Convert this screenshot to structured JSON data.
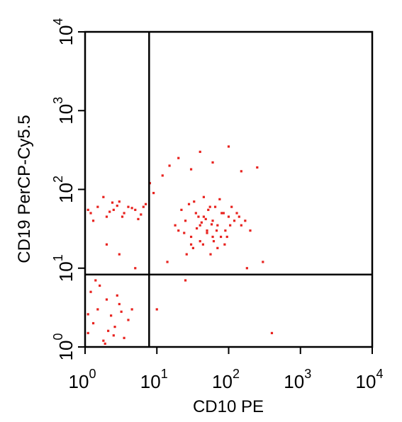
{
  "chart_data": {
    "type": "scatter",
    "x_label": "CD10 PE",
    "y_label": "CD19 PerCP-Cy5.5",
    "log_x": true,
    "log_y": true,
    "color": "#e8231f",
    "xlim": [
      1,
      10000
    ],
    "ylim": [
      1,
      10000
    ],
    "xticks": [
      {
        "value": 1,
        "label": "10",
        "sup": "0"
      },
      {
        "value": 10,
        "label": "10",
        "sup": "1"
      },
      {
        "value": 100,
        "label": "10",
        "sup": "2"
      },
      {
        "value": 1000,
        "label": "10",
        "sup": "3"
      },
      {
        "value": 10000,
        "label": "10",
        "sup": "4"
      }
    ],
    "yticks": [
      {
        "value": 1,
        "label": "10",
        "sup": "0"
      },
      {
        "value": 10,
        "label": "10",
        "sup": "1"
      },
      {
        "value": 100,
        "label": "10",
        "sup": "2"
      },
      {
        "value": 1000,
        "label": "10",
        "sup": "3"
      },
      {
        "value": 10000,
        "label": "10",
        "sup": "4"
      }
    ],
    "gates": {
      "x": 7.8,
      "y": 8.3
    },
    "x": [
      20,
      25,
      30,
      35,
      40,
      45,
      50,
      55,
      60,
      70,
      80,
      90,
      100,
      120,
      150,
      30,
      40,
      50,
      60,
      70,
      22,
      28,
      33,
      38,
      45,
      52,
      65,
      75,
      85,
      110,
      18,
      24,
      36,
      42,
      48,
      58,
      68,
      95,
      130,
      170,
      26,
      32,
      44,
      56,
      62,
      78,
      88,
      105,
      140,
      200,
      1.2,
      1.5,
      2,
      2.5,
      3,
      3.5,
      4,
      5,
      6,
      7,
      1.3,
      1.8,
      2.2,
      2.8,
      3.3,
      4.5,
      5.5,
      6.5,
      1.1,
      2.4,
      1.1,
      1.3,
      1.5,
      1.8,
      2,
      2.3,
      2.6,
      3,
      3.5,
      4,
      1.2,
      1.6,
      2.1,
      2.8,
      3.2,
      1.4,
      1.9,
      2.5,
      4.5,
      1.1,
      12,
      15,
      20,
      30,
      40,
      60,
      100,
      150,
      250,
      300,
      400,
      10,
      14,
      5,
      3,
      2,
      8,
      9,
      180,
      25
    ],
    "y": [
      30,
      40,
      25,
      50,
      35,
      45,
      30,
      60,
      40,
      35,
      50,
      30,
      45,
      40,
      35,
      20,
      22,
      28,
      25,
      18,
      55,
      65,
      70,
      45,
      80,
      55,
      60,
      75,
      50,
      60,
      35,
      28,
      32,
      38,
      42,
      36,
      30,
      25,
      50,
      40,
      15,
      18,
      20,
      15,
      22,
      25,
      20,
      35,
      45,
      30,
      50,
      60,
      45,
      55,
      70,
      50,
      60,
      55,
      48,
      65,
      40,
      80,
      52,
      62,
      45,
      58,
      42,
      60,
      55,
      68,
      1.5,
      2,
      3,
      1.2,
      4,
      2.5,
      1.8,
      3.5,
      1.3,
      2.2,
      5,
      6,
      1.6,
      4.5,
      2.8,
      7,
      1.1,
      1.4,
      3,
      2.6,
      150,
      200,
      250,
      180,
      300,
      220,
      350,
      170,
      190,
      12,
      1.5,
      3,
      12,
      10,
      15,
      20,
      120,
      90,
      10,
      7
    ]
  }
}
